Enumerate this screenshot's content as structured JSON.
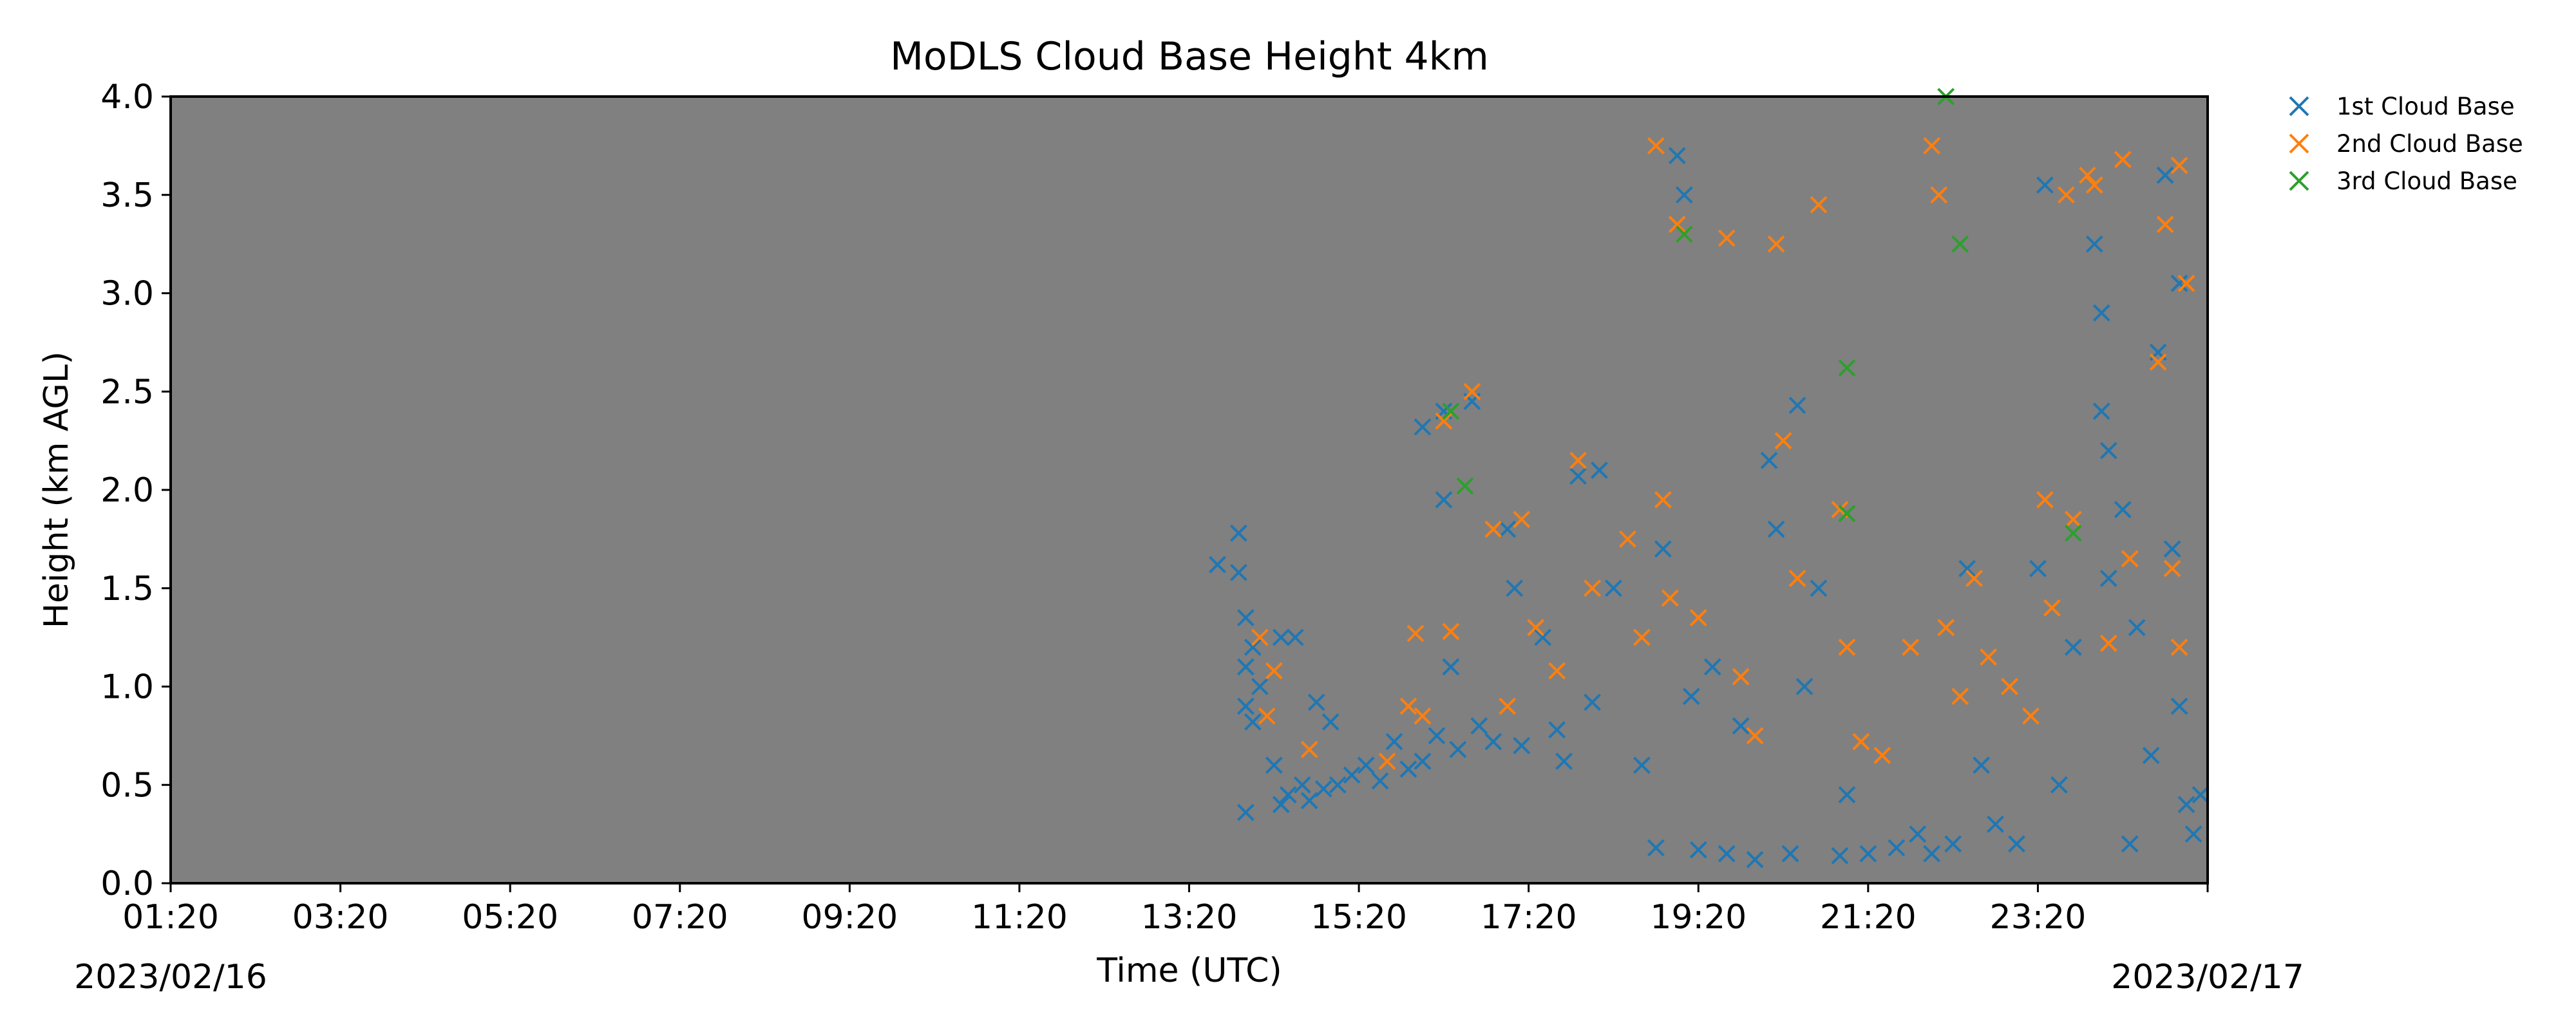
{
  "chart_data": {
    "type": "scatter",
    "title": "MoDLS Cloud Base Height 4km",
    "xlabel": "Time (UTC)",
    "ylabel": "Height (km AGL)",
    "date_start_label": "2023/02/16",
    "date_end_label": "2023/02/17",
    "xlim": [
      "2023-02-16T01:20",
      "2023-02-17T01:20"
    ],
    "ylim": [
      0,
      4
    ],
    "x_ticks": [
      "2023-02-16T01:20",
      "2023-02-16T03:20",
      "2023-02-16T05:20",
      "2023-02-16T07:20",
      "2023-02-16T09:20",
      "2023-02-16T11:20",
      "2023-02-16T13:20",
      "2023-02-16T15:20",
      "2023-02-16T17:20",
      "2023-02-16T19:20",
      "2023-02-16T21:20",
      "2023-02-16T23:20",
      "2023-02-17T01:20"
    ],
    "x_tick_labels": [
      "01:20",
      "03:20",
      "05:20",
      "07:20",
      "09:20",
      "11:20",
      "13:20",
      "15:20",
      "17:20",
      "19:20",
      "21:20",
      "23:20",
      ""
    ],
    "y_ticks": [
      0,
      0.5,
      1,
      1.5,
      2,
      2.5,
      3,
      3.5,
      4
    ],
    "y_tick_labels": [
      "0.0",
      "0.5",
      "1.0",
      "1.5",
      "2.0",
      "2.5",
      "3.0",
      "3.5",
      "4.0"
    ],
    "background_color": "#808080",
    "grid": false,
    "legend_position": "outside top-right",
    "marker": "x",
    "series": [
      {
        "name": "1st Cloud Base",
        "color": "#1f77b4",
        "points": [
          [
            "2023-02-16T13:40",
            1.62
          ],
          [
            "2023-02-16T13:55",
            1.78
          ],
          [
            "2023-02-16T13:55",
            1.58
          ],
          [
            "2023-02-16T14:00",
            1.35
          ],
          [
            "2023-02-16T14:00",
            1.1
          ],
          [
            "2023-02-16T14:00",
            0.9
          ],
          [
            "2023-02-16T14:00",
            0.36
          ],
          [
            "2023-02-16T14:05",
            1.2
          ],
          [
            "2023-02-16T14:05",
            0.82
          ],
          [
            "2023-02-16T14:10",
            1.0
          ],
          [
            "2023-02-16T14:15",
            0.85
          ],
          [
            "2023-02-16T14:20",
            0.6
          ],
          [
            "2023-02-16T14:25",
            1.25
          ],
          [
            "2023-02-16T14:25",
            0.4
          ],
          [
            "2023-02-16T14:30",
            0.45
          ],
          [
            "2023-02-16T14:35",
            1.25
          ],
          [
            "2023-02-16T14:40",
            0.5
          ],
          [
            "2023-02-16T14:45",
            0.42
          ],
          [
            "2023-02-16T14:50",
            0.92
          ],
          [
            "2023-02-16T14:55",
            0.48
          ],
          [
            "2023-02-16T15:00",
            0.82
          ],
          [
            "2023-02-16T15:05",
            0.5
          ],
          [
            "2023-02-16T15:15",
            0.55
          ],
          [
            "2023-02-16T15:25",
            0.6
          ],
          [
            "2023-02-16T15:35",
            0.52
          ],
          [
            "2023-02-16T15:45",
            0.72
          ],
          [
            "2023-02-16T15:55",
            0.58
          ],
          [
            "2023-02-16T16:05",
            2.32
          ],
          [
            "2023-02-16T16:05",
            0.62
          ],
          [
            "2023-02-16T16:15",
            0.75
          ],
          [
            "2023-02-16T16:20",
            2.4
          ],
          [
            "2023-02-16T16:20",
            1.95
          ],
          [
            "2023-02-16T16:25",
            1.1
          ],
          [
            "2023-02-16T16:30",
            0.68
          ],
          [
            "2023-02-16T16:40",
            2.45
          ],
          [
            "2023-02-16T16:45",
            0.8
          ],
          [
            "2023-02-16T16:55",
            0.72
          ],
          [
            "2023-02-16T17:05",
            1.8
          ],
          [
            "2023-02-16T17:10",
            1.5
          ],
          [
            "2023-02-16T17:15",
            0.7
          ],
          [
            "2023-02-16T17:30",
            1.25
          ],
          [
            "2023-02-16T17:40",
            0.78
          ],
          [
            "2023-02-16T17:45",
            0.62
          ],
          [
            "2023-02-16T17:55",
            2.07
          ],
          [
            "2023-02-16T18:05",
            0.92
          ],
          [
            "2023-02-16T18:10",
            2.1
          ],
          [
            "2023-02-16T18:20",
            1.5
          ],
          [
            "2023-02-16T18:40",
            0.6
          ],
          [
            "2023-02-16T18:50",
            0.18
          ],
          [
            "2023-02-16T18:55",
            1.7
          ],
          [
            "2023-02-16T19:05",
            3.7
          ],
          [
            "2023-02-16T19:10",
            3.5
          ],
          [
            "2023-02-16T19:15",
            0.95
          ],
          [
            "2023-02-16T19:20",
            0.17
          ],
          [
            "2023-02-16T19:30",
            1.1
          ],
          [
            "2023-02-16T19:40",
            0.15
          ],
          [
            "2023-02-16T19:50",
            0.8
          ],
          [
            "2023-02-16T20:00",
            0.12
          ],
          [
            "2023-02-16T20:10",
            2.15
          ],
          [
            "2023-02-16T20:15",
            1.8
          ],
          [
            "2023-02-16T20:25",
            0.15
          ],
          [
            "2023-02-16T20:30",
            2.43
          ],
          [
            "2023-02-16T20:35",
            1.0
          ],
          [
            "2023-02-16T20:45",
            1.5
          ],
          [
            "2023-02-16T21:00",
            0.14
          ],
          [
            "2023-02-16T21:05",
            0.45
          ],
          [
            "2023-02-16T21:20",
            0.15
          ],
          [
            "2023-02-16T21:40",
            0.18
          ],
          [
            "2023-02-16T21:55",
            0.25
          ],
          [
            "2023-02-16T22:05",
            0.15
          ],
          [
            "2023-02-16T22:20",
            0.2
          ],
          [
            "2023-02-16T22:30",
            1.6
          ],
          [
            "2023-02-16T22:40",
            0.6
          ],
          [
            "2023-02-16T22:50",
            0.3
          ],
          [
            "2023-02-16T23:05",
            0.2
          ],
          [
            "2023-02-16T23:20",
            1.6
          ],
          [
            "2023-02-16T23:25",
            3.55
          ],
          [
            "2023-02-16T23:35",
            0.5
          ],
          [
            "2023-02-16T23:45",
            1.2
          ],
          [
            "2023-02-16T23:55",
            3.6
          ],
          [
            "2023-02-17T00:00",
            3.25
          ],
          [
            "2023-02-17T00:05",
            2.9
          ],
          [
            "2023-02-17T00:05",
            2.4
          ],
          [
            "2023-02-17T00:10",
            2.2
          ],
          [
            "2023-02-17T00:10",
            1.55
          ],
          [
            "2023-02-17T00:20",
            1.9
          ],
          [
            "2023-02-17T00:25",
            0.2
          ],
          [
            "2023-02-17T00:30",
            1.3
          ],
          [
            "2023-02-17T00:40",
            0.65
          ],
          [
            "2023-02-17T00:45",
            2.7
          ],
          [
            "2023-02-17T00:50",
            3.6
          ],
          [
            "2023-02-17T00:55",
            1.7
          ],
          [
            "2023-02-17T01:00",
            0.9
          ],
          [
            "2023-02-17T01:00",
            3.05
          ],
          [
            "2023-02-17T01:05",
            0.4
          ],
          [
            "2023-02-17T01:10",
            0.25
          ],
          [
            "2023-02-17T01:15",
            0.45
          ]
        ]
      },
      {
        "name": "2nd Cloud Base",
        "color": "#ff7f0e",
        "points": [
          [
            "2023-02-16T14:10",
            1.25
          ],
          [
            "2023-02-16T14:15",
            0.85
          ],
          [
            "2023-02-16T14:20",
            1.08
          ],
          [
            "2023-02-16T14:45",
            0.68
          ],
          [
            "2023-02-16T15:40",
            0.62
          ],
          [
            "2023-02-16T15:55",
            0.9
          ],
          [
            "2023-02-16T16:00",
            1.27
          ],
          [
            "2023-02-16T16:05",
            0.85
          ],
          [
            "2023-02-16T16:20",
            2.35
          ],
          [
            "2023-02-16T16:25",
            1.28
          ],
          [
            "2023-02-16T16:40",
            2.5
          ],
          [
            "2023-02-16T16:55",
            1.8
          ],
          [
            "2023-02-16T17:05",
            0.9
          ],
          [
            "2023-02-16T17:15",
            1.85
          ],
          [
            "2023-02-16T17:25",
            1.3
          ],
          [
            "2023-02-16T17:40",
            1.08
          ],
          [
            "2023-02-16T17:55",
            2.15
          ],
          [
            "2023-02-16T18:05",
            1.5
          ],
          [
            "2023-02-16T18:30",
            1.75
          ],
          [
            "2023-02-16T18:40",
            1.25
          ],
          [
            "2023-02-16T18:50",
            3.75
          ],
          [
            "2023-02-16T18:55",
            1.95
          ],
          [
            "2023-02-16T19:00",
            1.45
          ],
          [
            "2023-02-16T19:05",
            3.35
          ],
          [
            "2023-02-16T19:10",
            3.3
          ],
          [
            "2023-02-16T19:20",
            1.35
          ],
          [
            "2023-02-16T19:40",
            3.28
          ],
          [
            "2023-02-16T19:50",
            1.05
          ],
          [
            "2023-02-16T20:00",
            0.75
          ],
          [
            "2023-02-16T20:15",
            3.25
          ],
          [
            "2023-02-16T20:20",
            2.25
          ],
          [
            "2023-02-16T20:30",
            1.55
          ],
          [
            "2023-02-16T20:45",
            3.45
          ],
          [
            "2023-02-16T21:00",
            1.9
          ],
          [
            "2023-02-16T21:05",
            1.2
          ],
          [
            "2023-02-16T21:15",
            0.72
          ],
          [
            "2023-02-16T21:30",
            0.65
          ],
          [
            "2023-02-16T21:50",
            1.2
          ],
          [
            "2023-02-16T22:05",
            3.75
          ],
          [
            "2023-02-16T22:10",
            3.5
          ],
          [
            "2023-02-16T22:15",
            1.3
          ],
          [
            "2023-02-16T22:25",
            0.95
          ],
          [
            "2023-02-16T22:35",
            1.55
          ],
          [
            "2023-02-16T22:45",
            1.15
          ],
          [
            "2023-02-16T23:00",
            1.0
          ],
          [
            "2023-02-16T23:15",
            0.85
          ],
          [
            "2023-02-16T23:25",
            1.95
          ],
          [
            "2023-02-16T23:30",
            1.4
          ],
          [
            "2023-02-16T23:40",
            3.5
          ],
          [
            "2023-02-16T23:45",
            1.85
          ],
          [
            "2023-02-16T23:55",
            3.6
          ],
          [
            "2023-02-17T00:00",
            3.55
          ],
          [
            "2023-02-17T00:10",
            1.22
          ],
          [
            "2023-02-17T00:20",
            3.68
          ],
          [
            "2023-02-17T00:25",
            1.65
          ],
          [
            "2023-02-17T00:45",
            2.65
          ],
          [
            "2023-02-17T00:50",
            3.35
          ],
          [
            "2023-02-17T00:55",
            1.6
          ],
          [
            "2023-02-17T01:00",
            3.65
          ],
          [
            "2023-02-17T01:00",
            1.2
          ],
          [
            "2023-02-17T01:05",
            3.05
          ]
        ]
      },
      {
        "name": "3rd Cloud Base",
        "color": "#2ca02c",
        "points": [
          [
            "2023-02-16T16:25",
            2.4
          ],
          [
            "2023-02-16T16:35",
            2.02
          ],
          [
            "2023-02-16T19:10",
            3.3
          ],
          [
            "2023-02-16T21:05",
            2.62
          ],
          [
            "2023-02-16T21:05",
            1.88
          ],
          [
            "2023-02-16T22:15",
            4.0
          ],
          [
            "2023-02-16T22:25",
            3.25
          ],
          [
            "2023-02-16T23:45",
            1.78
          ]
        ]
      }
    ]
  }
}
